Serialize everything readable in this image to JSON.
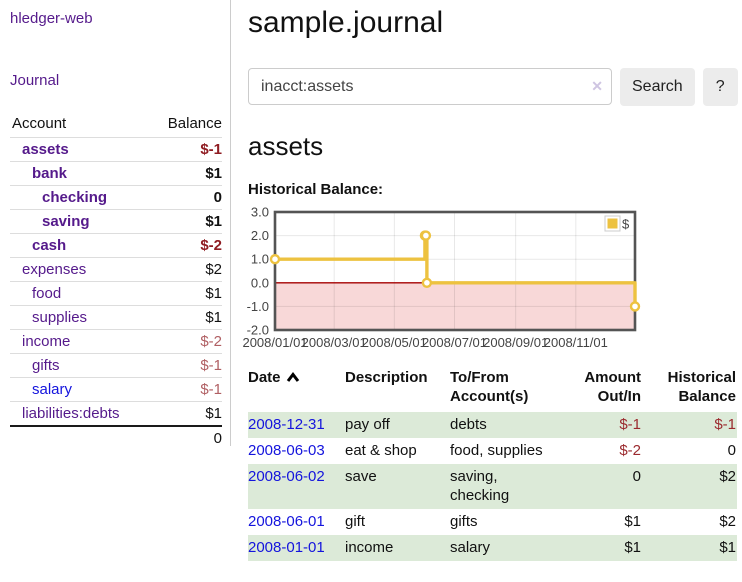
{
  "app": {
    "brand": "hledger-web"
  },
  "sidebar": {
    "journal_link": "Journal",
    "accounts_header": {
      "account": "Account",
      "balance": "Balance"
    },
    "accounts": [
      {
        "label": "assets",
        "depth": 0,
        "strong": true,
        "balance": "$-1",
        "neg": true
      },
      {
        "label": "bank",
        "depth": 1,
        "strong": true,
        "balance": "$1",
        "neg": false
      },
      {
        "label": "checking",
        "depth": 2,
        "strong": true,
        "balance": "0",
        "neg": false
      },
      {
        "label": "saving",
        "depth": 2,
        "strong": true,
        "balance": "$1",
        "neg": false
      },
      {
        "label": "cash",
        "depth": 1,
        "strong": true,
        "balance": "$-2",
        "neg": true
      },
      {
        "label": "expenses",
        "depth": 0,
        "strong": false,
        "balance": "$2",
        "neg": false
      },
      {
        "label": "food",
        "depth": 1,
        "strong": false,
        "balance": "$1",
        "neg": false
      },
      {
        "label": "supplies",
        "depth": 1,
        "strong": false,
        "balance": "$1",
        "neg": false
      },
      {
        "label": "income",
        "depth": 0,
        "strong": false,
        "balance": "$-2",
        "neg": true
      },
      {
        "label": "gifts",
        "depth": 1,
        "strong": false,
        "balance": "$-1",
        "neg": true
      },
      {
        "label": "salary",
        "depth": 1,
        "strong": false,
        "balance": "$-1",
        "neg": true,
        "unvisited": true
      },
      {
        "label": "liabilities:debts",
        "depth": 0,
        "strong": false,
        "balance": "$1",
        "neg": false
      }
    ],
    "total": "0"
  },
  "header": {
    "title": "sample.journal"
  },
  "search": {
    "value": "inacct:assets",
    "clear_icon": "✕",
    "button_label": "Search",
    "help_label": "?"
  },
  "account_page": {
    "title": "assets",
    "chart_label": "Historical Balance:"
  },
  "chart_data": {
    "type": "line",
    "title": "Historical Balance",
    "step": true,
    "x_range": [
      "2008-01-01",
      "2008-12-31"
    ],
    "ylim": [
      -2.0,
      3.0
    ],
    "y_ticks": [
      3.0,
      2.0,
      1.0,
      0.0,
      -1.0,
      -2.0
    ],
    "x_ticks": [
      {
        "date": "2008-01-01",
        "label": "2008/01/01"
      },
      {
        "date": "2008-03-01",
        "label": "2008/03/01"
      },
      {
        "date": "2008-05-01",
        "label": "2008/05/01"
      },
      {
        "date": "2008-07-01",
        "label": "2008/07/01"
      },
      {
        "date": "2008-09-01",
        "label": "2008/09/01"
      },
      {
        "date": "2008-11-01",
        "label": "2008/11/01"
      }
    ],
    "series": [
      {
        "name": "$",
        "color": "#edc240",
        "points": [
          {
            "date": "2008-01-01",
            "value": 1
          },
          {
            "date": "2008-06-01",
            "value": 2
          },
          {
            "date": "2008-06-02",
            "value": 2
          },
          {
            "date": "2008-06-03",
            "value": 0
          },
          {
            "date": "2008-12-31",
            "value": -1
          }
        ]
      }
    ],
    "legend_position": "top-right",
    "grid": true,
    "negative_region_color": "#f8d8d8",
    "zero_line_color": "#a40000",
    "plot_border_color": "#545454",
    "grid_line_color": "rgba(0,0,0,0.09)"
  },
  "register": {
    "columns": [
      {
        "lines": [
          "Date"
        ],
        "align": "left",
        "sort_ascending": true
      },
      {
        "lines": [
          "Description"
        ],
        "align": "left"
      },
      {
        "lines": [
          "To/From",
          "Account(s)"
        ],
        "align": "left"
      },
      {
        "lines": [
          "Amount",
          "Out/In"
        ],
        "align": "right"
      },
      {
        "lines": [
          "Historical",
          "Balance"
        ],
        "align": "right"
      }
    ],
    "rows": [
      {
        "date": "2008-12-31",
        "description": "pay off",
        "accounts": "debts",
        "amount": "$-1",
        "amount_neg": true,
        "balance": "$-1",
        "balance_neg": true,
        "shaded": true
      },
      {
        "date": "2008-06-03",
        "description": "eat & shop",
        "accounts": "food, supplies",
        "amount": "$-2",
        "amount_neg": true,
        "balance": "0",
        "balance_neg": false,
        "shaded": false
      },
      {
        "date": "2008-06-02",
        "description": "save",
        "accounts": "saving, checking",
        "amount": "0",
        "amount_neg": false,
        "balance": "$2",
        "balance_neg": false,
        "shaded": true
      },
      {
        "date": "2008-06-01",
        "description": "gift",
        "accounts": "gifts",
        "amount": "$1",
        "amount_neg": false,
        "balance": "$2",
        "balance_neg": false,
        "shaded": false
      },
      {
        "date": "2008-01-01",
        "description": "income",
        "accounts": "salary",
        "amount": "$1",
        "amount_neg": false,
        "balance": "$1",
        "balance_neg": false,
        "shaded": true
      }
    ]
  },
  "colors": {
    "link_purple": "#551a8b",
    "link_blue": "#1414dd",
    "negative_strong": "#8f1c22",
    "negative_light": "#b05f63",
    "negative_table": "#9b2a2e",
    "row_shade": "#dcead8",
    "series_yellow": "#edc240"
  }
}
